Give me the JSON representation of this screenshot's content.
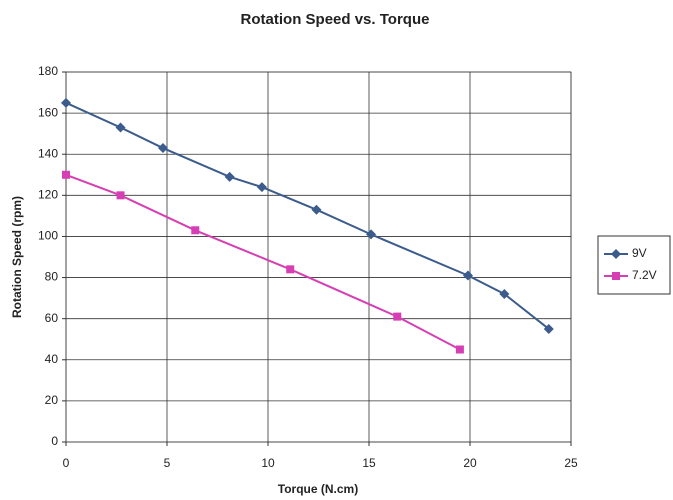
{
  "chart_data": {
    "type": "line",
    "title": "Rotation Speed vs. Torque",
    "xlabel": "Torque (N.cm)",
    "ylabel": "Rotation Speed (rpm)",
    "xlim": [
      0,
      25
    ],
    "xticks": [
      0,
      5,
      10,
      15,
      20,
      25
    ],
    "ylim": [
      0,
      180
    ],
    "yticks": [
      0,
      20,
      40,
      60,
      80,
      100,
      120,
      140,
      160,
      180
    ],
    "grid": true,
    "legend": "right",
    "series": [
      {
        "name": "9V",
        "color": "#3b5c8c",
        "marker": "diamond",
        "x": [
          0,
          2.7,
          4.8,
          8.1,
          9.7,
          12.4,
          15.1,
          19.9,
          21.7,
          23.9
        ],
        "values": [
          165,
          153,
          143,
          129,
          124,
          113,
          101,
          81,
          72,
          55
        ]
      },
      {
        "name": "7.2V",
        "color": "#d63fb3",
        "marker": "square",
        "x": [
          0,
          2.7,
          6.4,
          11.1,
          16.4,
          19.5
        ],
        "values": [
          130,
          120,
          103,
          84,
          61,
          45
        ]
      }
    ]
  }
}
